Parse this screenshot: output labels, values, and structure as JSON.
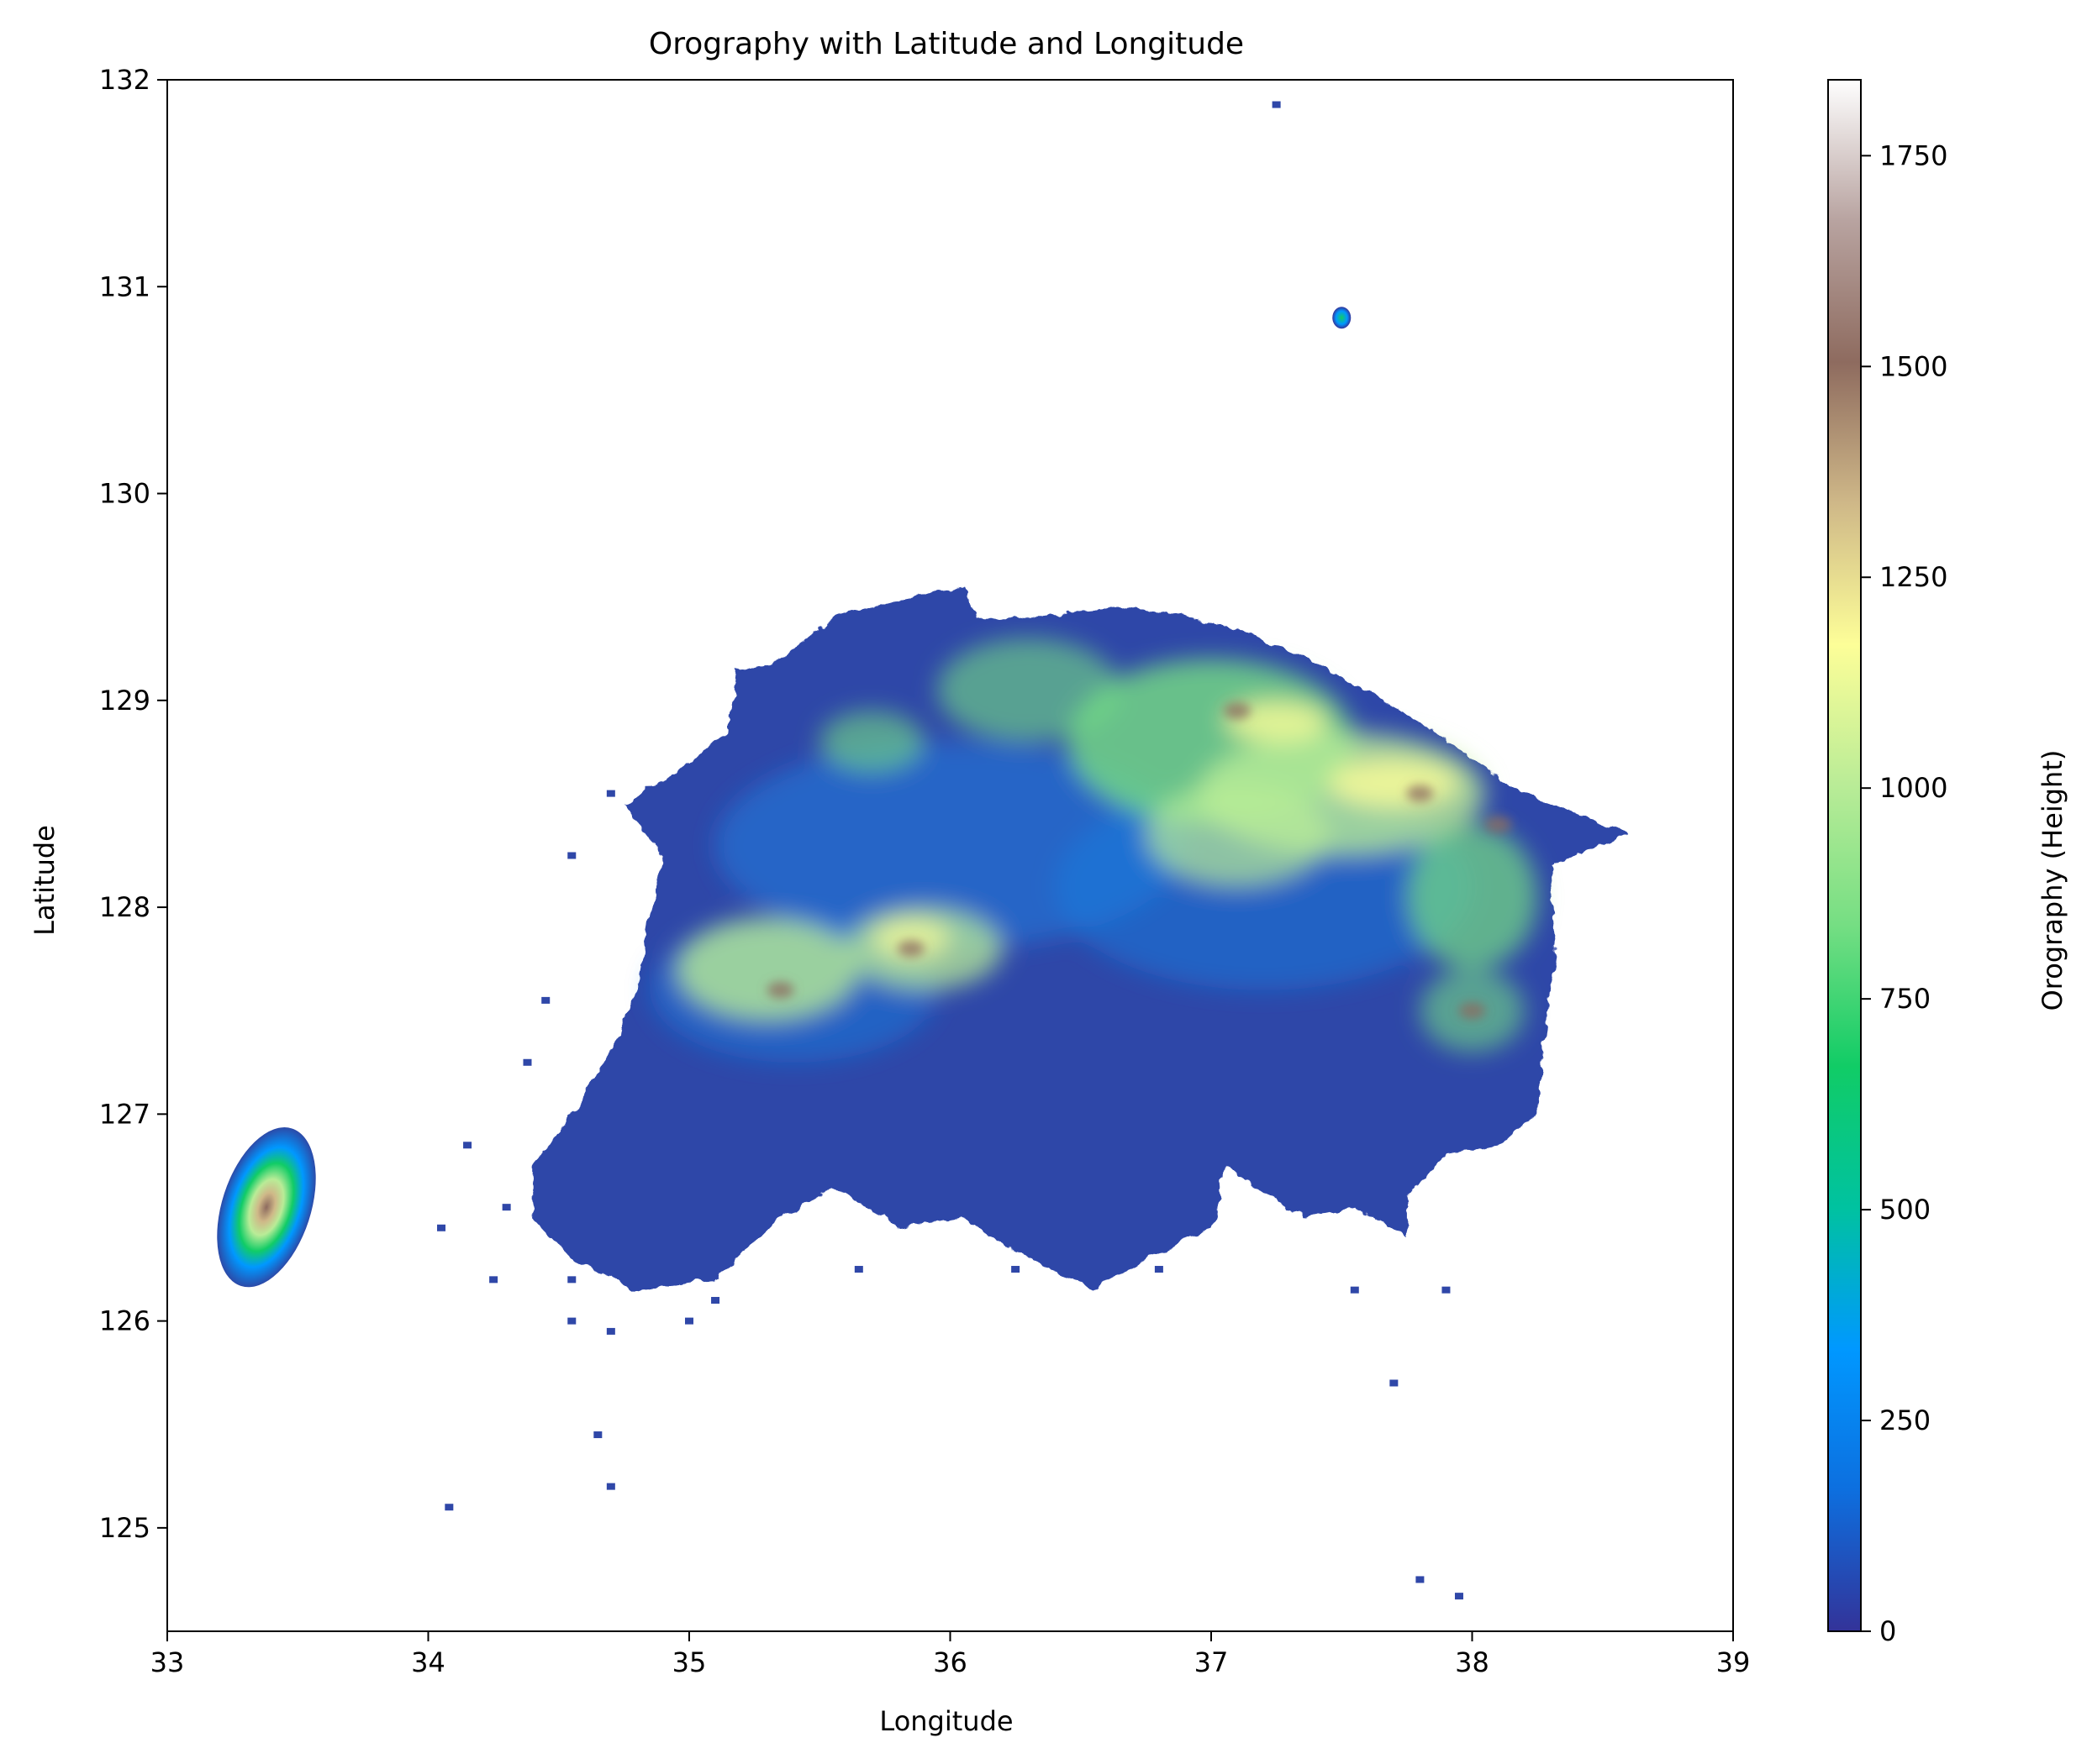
{
  "chart_data": {
    "type": "heatmap",
    "title": "Orography with Latitude and Longitude",
    "xlabel": "Longitude",
    "ylabel": "Latitude",
    "xlim": [
      33,
      39
    ],
    "ylim": [
      124.5,
      132
    ],
    "x_ticks": [
      "33",
      "34",
      "35",
      "36",
      "37",
      "38",
      "39"
    ],
    "y_ticks": [
      "125",
      "126",
      "127",
      "128",
      "129",
      "130",
      "131",
      "132"
    ],
    "colorbar": {
      "label": "Orography (Height)",
      "range": [
        0,
        1840
      ],
      "ticks": [
        "0",
        "250",
        "500",
        "750",
        "1000",
        "1250",
        "1500",
        "1750"
      ],
      "colormap": "terrain",
      "stops": [
        "#333399",
        "#0d6fdf",
        "#0098ff",
        "#00c2a0",
        "#11cc66",
        "#75de83",
        "#b9ec97",
        "#fdfe98",
        "#cfb888",
        "#8e6b5f",
        "#b8a3a0",
        "#fefefe"
      ]
    },
    "grid": false,
    "regions": [
      {
        "name": "main landmass",
        "lon_range": [
          34.6,
          38.6
        ],
        "lat_range": [
          126.1,
          129.55
        ],
        "peak_height": 1500
      },
      {
        "name": "southwest island",
        "lon_range": [
          33.2,
          33.55
        ],
        "lat_range": [
          126.15,
          126.95
        ],
        "peak_height": 1500
      },
      {
        "name": "northeast islet",
        "lon_range": [
          37.45,
          37.55
        ],
        "lat_range": [
          130.8,
          130.9
        ],
        "peak_height": 500
      },
      {
        "name": "south islets",
        "lon_range": [
          37.8,
          38.0
        ],
        "lat_range": [
          124.6,
          124.75
        ],
        "peak_height": 100
      }
    ]
  }
}
